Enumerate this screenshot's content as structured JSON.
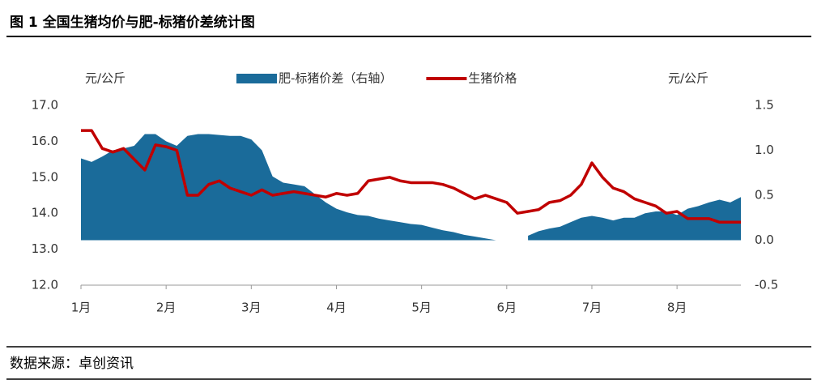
{
  "chart_data": {
    "type": "line",
    "title": "图 1  全国生猪均价与肥-标猪价差统计图",
    "source": "数据来源：卓创资讯",
    "y_label": "元/公斤",
    "y2_label": "元/公斤",
    "categories": [
      "1月",
      null,
      null,
      null,
      null,
      null,
      null,
      null,
      "2月",
      null,
      null,
      null,
      null,
      null,
      null,
      null,
      "3月",
      null,
      null,
      null,
      null,
      null,
      null,
      null,
      "4月",
      null,
      null,
      null,
      null,
      null,
      null,
      null,
      "5月",
      null,
      null,
      null,
      null,
      null,
      null,
      null,
      "6月",
      null,
      null,
      null,
      null,
      null,
      null,
      null,
      "7月",
      null,
      null,
      null,
      null,
      null,
      null,
      null,
      "8月",
      null,
      null,
      null,
      null,
      null,
      null
    ],
    "series": [
      {
        "name": "肥-标猪价差（右轴）",
        "type": "area",
        "axis": "y2",
        "color": "#1a6b9a",
        "values": [
          0.91,
          0.87,
          0.93,
          1.0,
          1.02,
          1.05,
          1.18,
          1.18,
          1.1,
          1.05,
          1.16,
          1.18,
          1.18,
          1.17,
          1.16,
          1.16,
          1.12,
          1.0,
          0.71,
          0.64,
          0.62,
          0.6,
          0.51,
          0.42,
          0.35,
          0.31,
          0.28,
          0.27,
          0.24,
          0.22,
          0.2,
          0.18,
          0.17,
          0.14,
          0.11,
          0.09,
          0.06,
          0.04,
          0.02,
          0.0,
          null,
          null,
          0.05,
          0.1,
          0.13,
          0.15,
          0.2,
          0.25,
          0.27,
          0.25,
          0.22,
          0.25,
          0.25,
          0.3,
          0.32,
          0.32,
          0.28,
          0.35,
          0.38,
          0.42,
          0.45,
          0.42,
          0.48
        ]
      },
      {
        "name": "生猪价格",
        "type": "line",
        "color": "#c00000",
        "values": [
          16.3,
          16.3,
          15.8,
          15.7,
          15.8,
          15.5,
          15.2,
          15.9,
          15.85,
          15.75,
          14.5,
          14.5,
          14.8,
          14.9,
          14.7,
          14.6,
          14.5,
          14.65,
          14.5,
          14.55,
          14.6,
          14.55,
          14.5,
          14.45,
          14.55,
          14.5,
          14.55,
          14.9,
          14.95,
          15.0,
          14.9,
          14.85,
          14.85,
          14.85,
          14.8,
          14.7,
          14.55,
          14.4,
          14.5,
          14.4,
          14.3,
          14.0,
          14.05,
          14.1,
          14.3,
          14.35,
          14.5,
          14.8,
          15.4,
          15.0,
          14.7,
          14.6,
          14.4,
          14.3,
          14.2,
          14.0,
          14.05,
          13.85,
          13.85,
          13.85,
          13.75,
          13.75,
          13.75
        ]
      }
    ],
    "ylim": [
      12,
      17
    ],
    "yticks": [
      {
        "value": 12,
        "label": "12.0"
      },
      {
        "value": 13,
        "label": "13.0"
      },
      {
        "value": 14,
        "label": "14.0"
      },
      {
        "value": 15,
        "label": "15.0"
      },
      {
        "value": 16,
        "label": "16.0"
      },
      {
        "value": 17,
        "label": "17.0"
      }
    ],
    "y2lim": [
      -0.5,
      1.5
    ],
    "y2ticks": [
      -0.5,
      {
        "value": 0,
        "label": "0.0"
      },
      0.5,
      {
        "value": 1,
        "label": "1.0"
      },
      1.5
    ]
  }
}
